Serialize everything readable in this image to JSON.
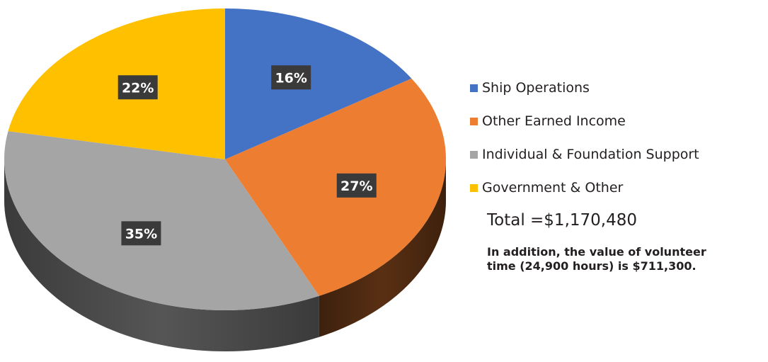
{
  "chart_data": {
    "type": "pie",
    "title": "",
    "categories": [
      "Ship Operations",
      "Other Earned Income",
      "Individual & Foundation Support",
      "Government & Other"
    ],
    "values": [
      16,
      27,
      35,
      22
    ],
    "data_labels": [
      "16%",
      "27%",
      "35%",
      "22%"
    ],
    "colors": [
      "#4472c4",
      "#ed7d31",
      "#a5a5a5",
      "#ffc000"
    ],
    "side_colors": [
      "#2f4f8a",
      "#5e3214",
      "#5a5a5a",
      "#9a7400"
    ],
    "legend_position": "right",
    "style": "3d"
  },
  "summary": {
    "total_text": "Total =$1,170,480",
    "note_text": "In addition, the value of volunteer time (24,900 hours) is $711,300."
  }
}
